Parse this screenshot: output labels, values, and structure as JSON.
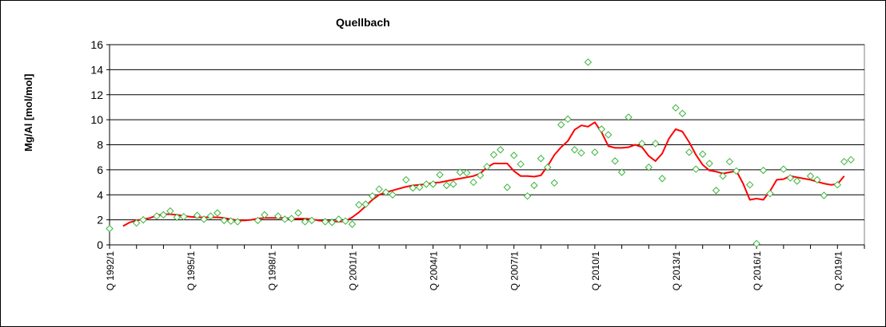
{
  "chart_data": {
    "type": "scatter",
    "title": "Quellbach",
    "ylabel": "Mg/Al [mol/mol]",
    "xlabel": "",
    "ylim": [
      0,
      16
    ],
    "yticks": [
      0,
      2,
      4,
      6,
      8,
      10,
      12,
      14,
      16
    ],
    "xticks": [
      "Q 1992/1",
      "Q 1995/1",
      "Q 1998/1",
      "Q 2001/1",
      "Q 2004/1",
      "Q 2007/1",
      "Q 2010/1",
      "Q 2013/1",
      "Q 2016/1",
      "Q 2019/1"
    ],
    "grid": "horizontal",
    "legend": "none",
    "x_quarters": [
      "1992Q1",
      "2020Q1"
    ],
    "series": [
      {
        "kind": "scatter",
        "marker": "diamond",
        "color": "#3cb43c",
        "points": [
          [
            1992.0,
            1.3
          ],
          [
            1993.0,
            1.75
          ],
          [
            1993.25,
            2.0
          ],
          [
            1993.75,
            2.3
          ],
          [
            1994.0,
            2.4
          ],
          [
            1994.25,
            2.7
          ],
          [
            1994.5,
            2.2
          ],
          [
            1994.75,
            2.25
          ],
          [
            1995.25,
            2.35
          ],
          [
            1995.5,
            2.05
          ],
          [
            1995.75,
            2.3
          ],
          [
            1996.0,
            2.55
          ],
          [
            1996.25,
            1.95
          ],
          [
            1996.5,
            1.9
          ],
          [
            1996.75,
            1.85
          ],
          [
            1997.5,
            1.95
          ],
          [
            1997.75,
            2.4
          ],
          [
            1998.25,
            2.3
          ],
          [
            1998.5,
            2.05
          ],
          [
            1998.75,
            2.1
          ],
          [
            1999.0,
            2.55
          ],
          [
            1999.25,
            1.85
          ],
          [
            1999.5,
            1.95
          ],
          [
            2000.0,
            1.85
          ],
          [
            2000.25,
            1.8
          ],
          [
            2000.5,
            2.05
          ],
          [
            2000.75,
            1.9
          ],
          [
            2001.0,
            1.65
          ],
          [
            2001.25,
            3.2
          ],
          [
            2001.5,
            3.25
          ],
          [
            2001.75,
            3.9
          ],
          [
            2002.0,
            4.45
          ],
          [
            2002.25,
            4.2
          ],
          [
            2002.5,
            4.0
          ],
          [
            2003.0,
            5.2
          ],
          [
            2003.25,
            4.55
          ],
          [
            2003.5,
            4.6
          ],
          [
            2003.75,
            4.85
          ],
          [
            2004.0,
            4.85
          ],
          [
            2004.25,
            5.6
          ],
          [
            2004.5,
            4.75
          ],
          [
            2004.75,
            4.85
          ],
          [
            2005.0,
            5.8
          ],
          [
            2005.25,
            5.75
          ],
          [
            2005.5,
            5.0
          ],
          [
            2005.75,
            5.55
          ],
          [
            2006.0,
            6.25
          ],
          [
            2006.25,
            7.2
          ],
          [
            2006.5,
            7.6
          ],
          [
            2006.75,
            4.6
          ],
          [
            2007.0,
            7.15
          ],
          [
            2007.25,
            6.45
          ],
          [
            2007.5,
            3.9
          ],
          [
            2007.75,
            4.75
          ],
          [
            2008.0,
            6.9
          ],
          [
            2008.25,
            6.2
          ],
          [
            2008.5,
            4.95
          ],
          [
            2008.75,
            9.6
          ],
          [
            2009.0,
            10.05
          ],
          [
            2009.25,
            7.6
          ],
          [
            2009.5,
            7.35
          ],
          [
            2009.75,
            14.6
          ],
          [
            2010.0,
            7.4
          ],
          [
            2010.25,
            9.25
          ],
          [
            2010.5,
            8.8
          ],
          [
            2010.75,
            6.7
          ],
          [
            2011.0,
            5.8
          ],
          [
            2011.25,
            10.2
          ],
          [
            2011.75,
            8.1
          ],
          [
            2012.0,
            6.2
          ],
          [
            2012.25,
            8.1
          ],
          [
            2012.5,
            5.3
          ],
          [
            2013.0,
            10.95
          ],
          [
            2013.25,
            10.5
          ],
          [
            2013.5,
            7.4
          ],
          [
            2013.75,
            6.05
          ],
          [
            2014.0,
            7.25
          ],
          [
            2014.25,
            6.5
          ],
          [
            2014.5,
            4.35
          ],
          [
            2014.75,
            5.5
          ],
          [
            2015.0,
            6.65
          ],
          [
            2015.25,
            5.9
          ],
          [
            2015.75,
            4.8
          ],
          [
            2016.0,
            0.1
          ],
          [
            2016.25,
            5.95
          ],
          [
            2016.5,
            4.1
          ],
          [
            2017.0,
            6.05
          ],
          [
            2017.25,
            5.35
          ],
          [
            2017.5,
            5.1
          ],
          [
            2018.0,
            5.5
          ],
          [
            2018.25,
            5.2
          ],
          [
            2018.5,
            3.95
          ],
          [
            2019.0,
            4.8
          ],
          [
            2019.25,
            6.65
          ],
          [
            2019.5,
            6.8
          ]
        ]
      },
      {
        "kind": "line",
        "color": "#ff0000",
        "points": [
          [
            1992.5,
            1.5
          ],
          [
            1992.75,
            1.8
          ],
          [
            1993.0,
            1.95
          ],
          [
            1993.25,
            2.05
          ],
          [
            1993.5,
            2.15
          ],
          [
            1993.75,
            2.35
          ],
          [
            1994.0,
            2.45
          ],
          [
            1994.25,
            2.45
          ],
          [
            1994.5,
            2.4
          ],
          [
            1994.75,
            2.3
          ],
          [
            1995.0,
            2.25
          ],
          [
            1995.25,
            2.2
          ],
          [
            1995.5,
            2.2
          ],
          [
            1995.75,
            2.2
          ],
          [
            1996.0,
            2.2
          ],
          [
            1996.25,
            2.15
          ],
          [
            1996.5,
            2.05
          ],
          [
            1996.75,
            1.95
          ],
          [
            1997.0,
            1.95
          ],
          [
            1997.25,
            2.0
          ],
          [
            1997.5,
            2.1
          ],
          [
            1997.75,
            2.15
          ],
          [
            1998.0,
            2.15
          ],
          [
            1998.25,
            2.15
          ],
          [
            1998.5,
            2.15
          ],
          [
            1998.75,
            2.1
          ],
          [
            1999.0,
            2.1
          ],
          [
            1999.25,
            2.1
          ],
          [
            1999.5,
            2.05
          ],
          [
            1999.75,
            1.95
          ],
          [
            2000.0,
            1.9
          ],
          [
            2000.25,
            1.9
          ],
          [
            2000.5,
            1.85
          ],
          [
            2000.75,
            1.9
          ],
          [
            2001.0,
            2.2
          ],
          [
            2001.25,
            2.6
          ],
          [
            2001.5,
            3.1
          ],
          [
            2001.75,
            3.6
          ],
          [
            2002.0,
            4.0
          ],
          [
            2002.25,
            4.2
          ],
          [
            2002.5,
            4.35
          ],
          [
            2002.75,
            4.5
          ],
          [
            2003.0,
            4.65
          ],
          [
            2003.25,
            4.75
          ],
          [
            2003.5,
            4.8
          ],
          [
            2003.75,
            4.85
          ],
          [
            2004.0,
            4.95
          ],
          [
            2004.25,
            5.0
          ],
          [
            2004.5,
            5.1
          ],
          [
            2004.75,
            5.2
          ],
          [
            2005.0,
            5.3
          ],
          [
            2005.25,
            5.4
          ],
          [
            2005.5,
            5.5
          ],
          [
            2005.75,
            5.7
          ],
          [
            2006.0,
            6.2
          ],
          [
            2006.25,
            6.5
          ],
          [
            2006.5,
            6.5
          ],
          [
            2006.75,
            6.5
          ],
          [
            2007.0,
            5.9
          ],
          [
            2007.25,
            5.5
          ],
          [
            2007.5,
            5.5
          ],
          [
            2007.75,
            5.45
          ],
          [
            2008.0,
            5.55
          ],
          [
            2008.25,
            6.3
          ],
          [
            2008.5,
            7.2
          ],
          [
            2008.75,
            7.8
          ],
          [
            2009.0,
            8.3
          ],
          [
            2009.25,
            9.2
          ],
          [
            2009.5,
            9.55
          ],
          [
            2009.75,
            9.45
          ],
          [
            2010.0,
            9.8
          ],
          [
            2010.25,
            9.0
          ],
          [
            2010.5,
            7.9
          ],
          [
            2010.75,
            7.75
          ],
          [
            2011.0,
            7.75
          ],
          [
            2011.25,
            7.8
          ],
          [
            2011.5,
            8.0
          ],
          [
            2011.75,
            7.8
          ],
          [
            2012.0,
            7.1
          ],
          [
            2012.25,
            6.7
          ],
          [
            2012.5,
            7.3
          ],
          [
            2012.75,
            8.5
          ],
          [
            2013.0,
            9.25
          ],
          [
            2013.25,
            9.05
          ],
          [
            2013.5,
            8.2
          ],
          [
            2013.75,
            7.2
          ],
          [
            2014.0,
            6.4
          ],
          [
            2014.25,
            5.95
          ],
          [
            2014.5,
            5.85
          ],
          [
            2014.75,
            5.7
          ],
          [
            2015.0,
            5.8
          ],
          [
            2015.25,
            5.9
          ],
          [
            2015.5,
            4.9
          ],
          [
            2015.75,
            3.6
          ],
          [
            2016.0,
            3.7
          ],
          [
            2016.25,
            3.6
          ],
          [
            2016.5,
            4.3
          ],
          [
            2016.75,
            5.2
          ],
          [
            2017.0,
            5.25
          ],
          [
            2017.25,
            5.5
          ],
          [
            2017.5,
            5.4
          ],
          [
            2017.75,
            5.3
          ],
          [
            2018.0,
            5.2
          ],
          [
            2018.25,
            5.05
          ],
          [
            2018.5,
            4.9
          ],
          [
            2018.75,
            4.8
          ],
          [
            2019.0,
            4.85
          ],
          [
            2019.25,
            5.5
          ]
        ]
      }
    ]
  }
}
